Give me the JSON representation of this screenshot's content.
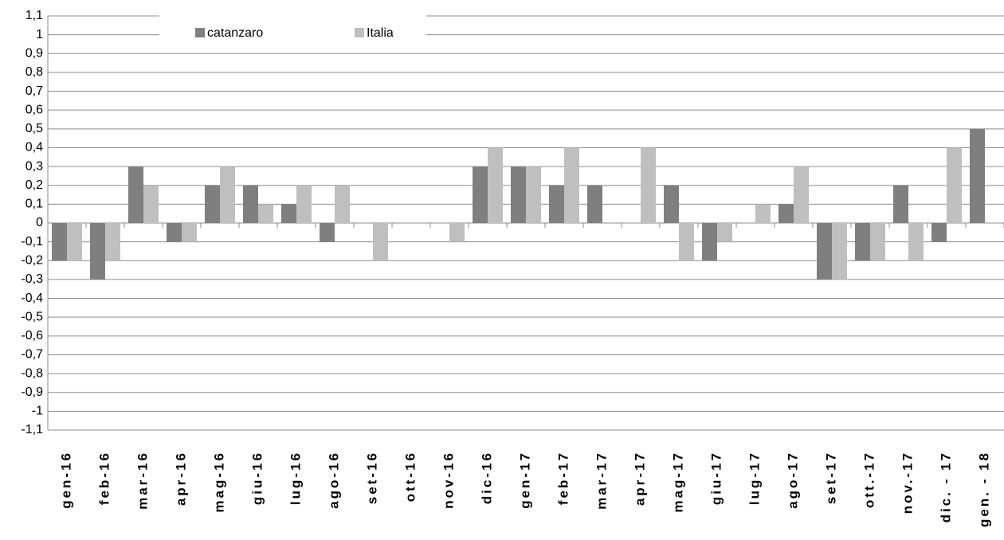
{
  "chart_data": {
    "type": "bar",
    "categories": [
      "gen-16",
      "feb-16",
      "mar-16",
      "apr-16",
      "mag-16",
      "giu-16",
      "lug-16",
      "ago-16",
      "set-16",
      "ott-16",
      "nov-16",
      "dic-16",
      "gen-17",
      "feb-17",
      "mar-17",
      "apr-17",
      "mag-17",
      "giu-17",
      "lug-17",
      "ago-17",
      "set-17",
      "ott.-17",
      "nov.-17",
      "dic. - 17",
      "gen. - 18"
    ],
    "series": [
      {
        "name": "catanzaro",
        "color": "#7f7f7f",
        "values": [
          -0.2,
          -0.3,
          0.3,
          -0.1,
          0.2,
          0.2,
          0.1,
          -0.1,
          0,
          0,
          0,
          0.3,
          0.3,
          0.2,
          0.2,
          0,
          0.2,
          -0.2,
          0,
          0.1,
          -0.3,
          -0.2,
          0.2,
          -0.1,
          0.5
        ]
      },
      {
        "name": "Italia",
        "color": "#bfbfbf",
        "values": [
          -0.2,
          -0.2,
          0.2,
          -0.1,
          0.3,
          0.1,
          0.2,
          0.2,
          -0.2,
          0,
          -0.1,
          0.4,
          0.3,
          0.4,
          0,
          0.4,
          -0.2,
          -0.1,
          0.1,
          0.3,
          -0.3,
          -0.2,
          -0.2,
          0.4,
          null
        ]
      }
    ],
    "ylim": [
      -1.1,
      1.1
    ],
    "yticks": [
      {
        "value": -1.1,
        "label": "-1,1"
      },
      -1,
      {
        "value": -0.9,
        "label": "-0,9"
      },
      {
        "value": -0.8,
        "label": "-0,8"
      },
      {
        "value": -0.7,
        "label": "-0,7"
      },
      {
        "value": -0.6,
        "label": "-0,6"
      },
      {
        "value": -0.5,
        "label": "-0,5"
      },
      {
        "value": -0.4,
        "label": "-0,4"
      },
      {
        "value": -0.3,
        "label": "-0,3"
      },
      {
        "value": -0.2,
        "label": "-0,2"
      },
      {
        "value": -0.1,
        "label": "-0,1"
      },
      0,
      {
        "value": 0.1,
        "label": "0,1"
      },
      {
        "value": 0.2,
        "label": "0,2"
      },
      {
        "value": 0.3,
        "label": "0,3"
      },
      {
        "value": 0.4,
        "label": "0,4"
      },
      {
        "value": 0.5,
        "label": "0,5"
      },
      {
        "value": 0.6,
        "label": "0,6"
      },
      {
        "value": 0.7,
        "label": "0,7"
      },
      {
        "value": 0.8,
        "label": "0,8"
      },
      {
        "value": 0.9,
        "label": "0,9"
      },
      1,
      {
        "value": 1.1,
        "label": "1,1"
      }
    ],
    "grid": true,
    "legend": "top"
  }
}
